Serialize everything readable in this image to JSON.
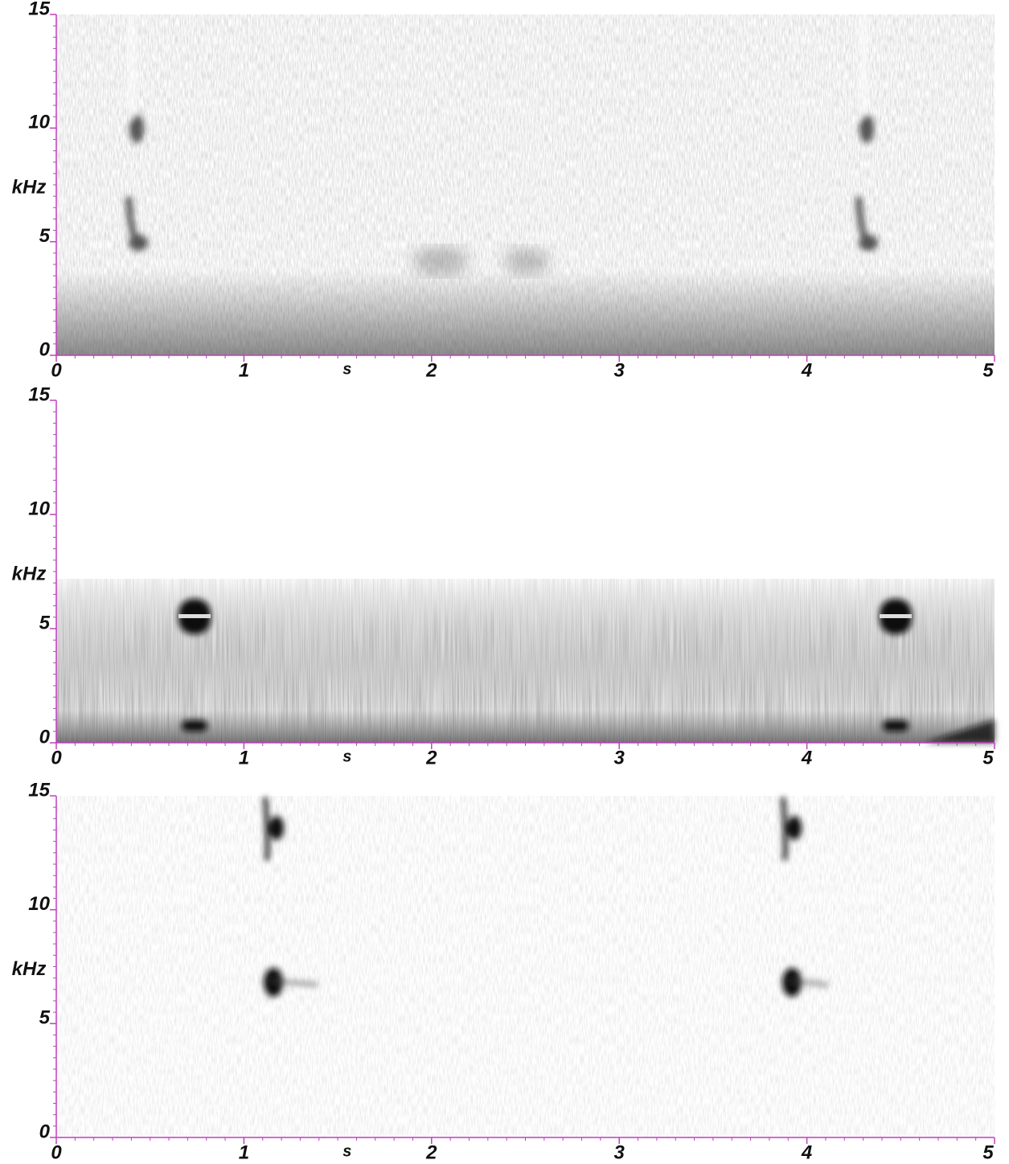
{
  "chart_data": [
    {
      "type": "spectrogram",
      "xlabel": "s",
      "ylabel": "kHz",
      "xlim": [
        0,
        5
      ],
      "xticks": [
        0,
        1,
        2,
        3,
        4,
        5
      ],
      "ylim": [
        0,
        15
      ],
      "yticks": [
        0,
        5,
        10,
        15
      ],
      "axis_color": "#c040c0"
    },
    {
      "type": "spectrogram",
      "xlabel": "s",
      "ylabel": "kHz",
      "xlim": [
        0,
        5
      ],
      "xticks": [
        0,
        1,
        2,
        3,
        4,
        5
      ],
      "ylim": [
        0,
        15
      ],
      "yticks": [
        0,
        5,
        10,
        15
      ],
      "axis_color": "#c040c0"
    },
    {
      "type": "spectrogram",
      "xlabel": "s",
      "ylabel": "kHz",
      "xlim": [
        0,
        5
      ],
      "xticks": [
        0,
        1,
        2,
        3,
        4,
        5
      ],
      "ylim": [
        0,
        15
      ],
      "yticks": [
        0,
        5,
        10,
        15
      ],
      "axis_color": "#c040c0"
    }
  ]
}
